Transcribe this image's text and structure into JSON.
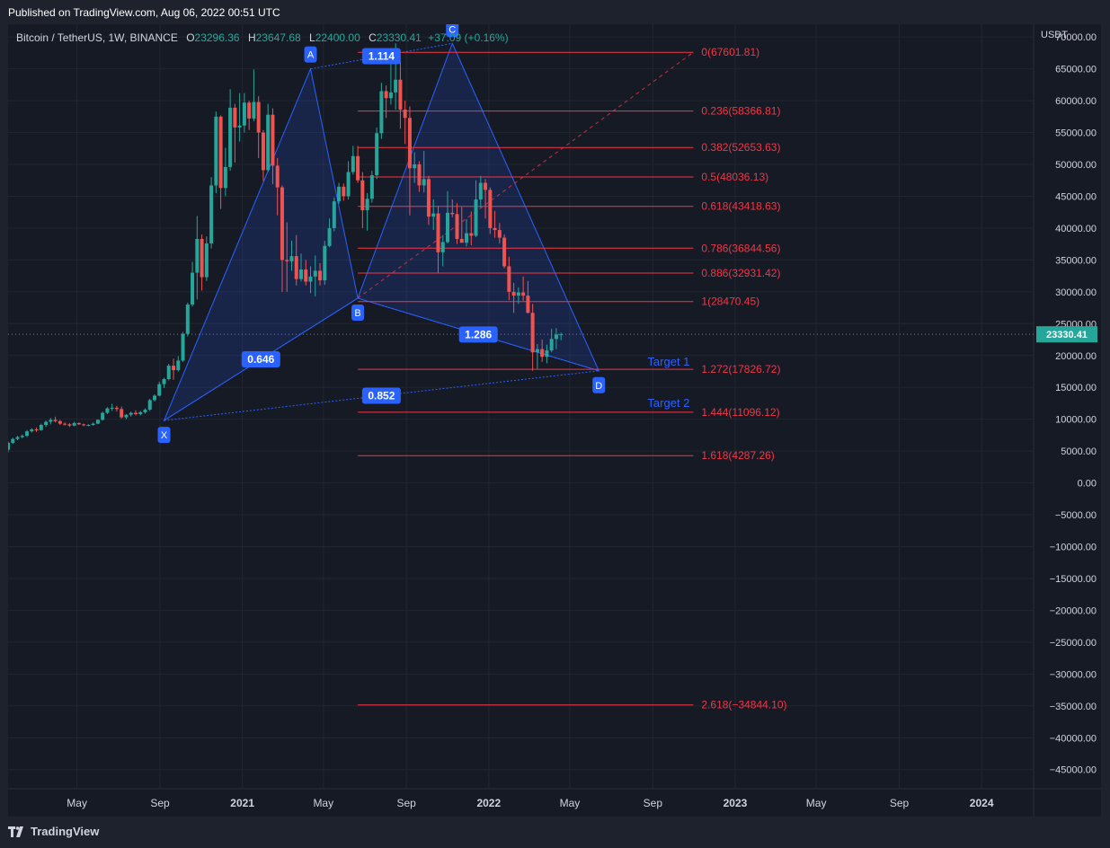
{
  "published": "Published on TradingView.com, Aug 06, 2022 00:51 UTC",
  "symbol_line": {
    "title": "Bitcoin / TetherUS, 1W, BINANCE",
    "open_label": "O",
    "open": "23296.36",
    "high_label": "H",
    "high": "23647.68",
    "low_label": "L",
    "low": "22400.00",
    "close_label": "C",
    "close": "23330.41",
    "change": "+37.09 (+0.16%)"
  },
  "currency": "USDT",
  "footer_brand": "TradingView",
  "colors": {
    "background": "#161a25",
    "up": "#26a69a",
    "down": "#ef5350",
    "fib": "#f23645",
    "pattern": "#2962ff",
    "label_bg": "#2962ff"
  },
  "chart_data": {
    "type": "candlestick",
    "ylim": [
      -48000,
      72000
    ],
    "y_ticks": [
      "70000.00",
      "65000.00",
      "60000.00",
      "55000.00",
      "50000.00",
      "45000.00",
      "40000.00",
      "35000.00",
      "30000.00",
      "25000.00",
      "20000.00",
      "15000.00",
      "10000.00",
      "5000.00",
      "0.00",
      "−5000.00",
      "−10000.00",
      "−15000.00",
      "−20000.00",
      "−25000.00",
      "−30000.00",
      "−35000.00",
      "−40000.00",
      "−45000.00"
    ],
    "x_ticks": [
      "May",
      "Sep",
      "2021",
      "May",
      "Sep",
      "2022",
      "May",
      "Sep",
      "2023",
      "May",
      "Sep",
      "2024"
    ],
    "last_price": "23330.41",
    "pattern_points": [
      {
        "label": "X",
        "x": "2020-09-07",
        "y": 9800
      },
      {
        "label": "A",
        "x": "2021-04-12",
        "y": 65000
      },
      {
        "label": "B",
        "x": "2021-06-21",
        "y": 29000
      },
      {
        "label": "C",
        "x": "2021-11-08",
        "y": 69000
      },
      {
        "label": "D",
        "x": "2022-06-13",
        "y": 17600
      }
    ],
    "ratios": [
      {
        "text": "0.646",
        "between": "X-B"
      },
      {
        "text": "1.114",
        "between": "A-C"
      },
      {
        "text": "1.286",
        "between": "B-D"
      },
      {
        "text": "0.852",
        "between": "X-D"
      }
    ],
    "fib_levels": [
      {
        "ratio": "0",
        "price": 67601.81,
        "label": "0(67601.81)"
      },
      {
        "ratio": "0.236",
        "price": 58366.81,
        "label": "0.236(58366.81)"
      },
      {
        "ratio": "0.382",
        "price": 52653.63,
        "label": "0.382(52653.63)"
      },
      {
        "ratio": "0.5",
        "price": 48036.13,
        "label": "0.5(48036.13)"
      },
      {
        "ratio": "0.618",
        "price": 43418.63,
        "label": "0.618(43418.63)"
      },
      {
        "ratio": "0.786",
        "price": 36844.56,
        "label": "0.786(36844.56)"
      },
      {
        "ratio": "0.886",
        "price": 32931.42,
        "label": "0.886(32931.42)"
      },
      {
        "ratio": "1",
        "price": 28470.45,
        "label": "1(28470.45)"
      },
      {
        "ratio": "1.272",
        "price": 17826.72,
        "label": "1.272(17826.72)"
      },
      {
        "ratio": "1.444",
        "price": 11096.12,
        "label": "1.444(11096.12)"
      },
      {
        "ratio": "1.618",
        "price": 4287.26,
        "label": "1.618(4287.26)"
      },
      {
        "ratio": "2.618",
        "price": -34844.1,
        "label": "2.618(−34844.10)"
      }
    ],
    "targets": [
      {
        "text": "Target 1",
        "price": 17826.72
      },
      {
        "text": "Target 2",
        "price": 11096.12
      }
    ],
    "candles_ohlc": [
      [
        5200,
        6500,
        4800,
        6300
      ],
      [
        6300,
        7100,
        6100,
        6900
      ],
      [
        6900,
        7400,
        6700,
        7200
      ],
      [
        7200,
        7600,
        7000,
        7400
      ],
      [
        7400,
        8300,
        7200,
        8100
      ],
      [
        8100,
        8600,
        7900,
        8400
      ],
      [
        8400,
        8700,
        8000,
        8300
      ],
      [
        8300,
        9300,
        8200,
        9100
      ],
      [
        9100,
        9800,
        8800,
        9600
      ],
      [
        9600,
        10200,
        9200,
        9900
      ],
      [
        9900,
        10400,
        9500,
        9700
      ],
      [
        9700,
        9900,
        9100,
        9300
      ],
      [
        9300,
        9500,
        9000,
        9200
      ],
      [
        9200,
        9400,
        8800,
        9000
      ],
      [
        9000,
        9600,
        8900,
        9400
      ],
      [
        9400,
        9500,
        9100,
        9200
      ],
      [
        9200,
        9300,
        8900,
        9100
      ],
      [
        9100,
        9200,
        8900,
        9100
      ],
      [
        9100,
        9500,
        9000,
        9300
      ],
      [
        9300,
        10000,
        9200,
        9900
      ],
      [
        9900,
        11200,
        9800,
        11000
      ],
      [
        11000,
        11900,
        10800,
        11700
      ],
      [
        11700,
        12400,
        11300,
        11800
      ],
      [
        11800,
        12100,
        11200,
        11600
      ],
      [
        11600,
        12000,
        10100,
        10300
      ],
      [
        10300,
        10800,
        10000,
        10700
      ],
      [
        10700,
        11200,
        10400,
        11000
      ],
      [
        11000,
        11400,
        10600,
        10800
      ],
      [
        10800,
        11300,
        10600,
        11100
      ],
      [
        11100,
        11700,
        10900,
        11500
      ],
      [
        11500,
        13200,
        11300,
        13000
      ],
      [
        13000,
        13900,
        12800,
        13700
      ],
      [
        13700,
        15900,
        13600,
        15500
      ],
      [
        15500,
        16500,
        14900,
        16300
      ],
      [
        16300,
        18700,
        16100,
        18400
      ],
      [
        18400,
        19500,
        16200,
        17700
      ],
      [
        17700,
        19900,
        17500,
        19200
      ],
      [
        19200,
        23700,
        19000,
        23400
      ],
      [
        23400,
        28300,
        23000,
        28000
      ],
      [
        28000,
        34700,
        27700,
        33000
      ],
      [
        33000,
        41900,
        28800,
        38300
      ],
      [
        38300,
        39000,
        30200,
        32300
      ],
      [
        32300,
        38700,
        31700,
        37600
      ],
      [
        37600,
        48000,
        36800,
        46700
      ],
      [
        46700,
        58300,
        45500,
        57500
      ],
      [
        57500,
        57700,
        43000,
        46300
      ],
      [
        46300,
        52600,
        45000,
        49600
      ],
      [
        49600,
        61800,
        49000,
        58900
      ],
      [
        58900,
        59500,
        50300,
        55800
      ],
      [
        55800,
        61200,
        53600,
        56100
      ],
      [
        56100,
        61200,
        55000,
        59700
      ],
      [
        59700,
        60000,
        55400,
        57200
      ],
      [
        57200,
        64900,
        56800,
        59800
      ],
      [
        59800,
        60700,
        51000,
        55000
      ],
      [
        55000,
        55400,
        47400,
        49100
      ],
      [
        49100,
        59500,
        48800,
        57800
      ],
      [
        57800,
        58800,
        46900,
        49800
      ],
      [
        49800,
        51000,
        42000,
        46400
      ],
      [
        46400,
        46700,
        30000,
        35000
      ],
      [
        35000,
        40900,
        30000,
        34800
      ],
      [
        34800,
        38000,
        33300,
        35600
      ],
      [
        35600,
        38900,
        31000,
        32000
      ],
      [
        32000,
        36000,
        31600,
        33500
      ],
      [
        33500,
        35000,
        31000,
        31600
      ],
      [
        31600,
        34000,
        29800,
        32400
      ],
      [
        32400,
        35700,
        29300,
        33300
      ],
      [
        33300,
        34500,
        31000,
        31800
      ],
      [
        31800,
        38000,
        31100,
        37200
      ],
      [
        37200,
        41500,
        37000,
        40000
      ],
      [
        40000,
        44800,
        39500,
        44200
      ],
      [
        44200,
        47100,
        43800,
        46500
      ],
      [
        46500,
        47000,
        44300,
        45000
      ],
      [
        45000,
        50500,
        44500,
        48800
      ],
      [
        48800,
        52900,
        48400,
        51300
      ],
      [
        51300,
        52900,
        47100,
        47500
      ],
      [
        47500,
        48800,
        40000,
        42800
      ],
      [
        42800,
        45500,
        39600,
        44600
      ],
      [
        44600,
        49000,
        44000,
        48300
      ],
      [
        48300,
        55800,
        47700,
        54900
      ],
      [
        54900,
        62800,
        54000,
        61500
      ],
      [
        61500,
        62400,
        57300,
        60400
      ],
      [
        60400,
        67000,
        59400,
        61300
      ],
      [
        61300,
        69000,
        58600,
        63300
      ],
      [
        63300,
        66300,
        55600,
        58600
      ],
      [
        58600,
        60000,
        53200,
        57300
      ],
      [
        57300,
        59100,
        42000,
        49400
      ],
      [
        49400,
        51900,
        47100,
        50000
      ],
      [
        50000,
        50500,
        45700,
        46700
      ],
      [
        46700,
        52100,
        45600,
        47700
      ],
      [
        47700,
        48200,
        40500,
        41800
      ],
      [
        41800,
        44500,
        39700,
        42300
      ],
      [
        42300,
        43500,
        33000,
        36200
      ],
      [
        36200,
        38900,
        34000,
        37800
      ],
      [
        37800,
        45800,
        37600,
        42400
      ],
      [
        42400,
        44500,
        41700,
        42200
      ],
      [
        42200,
        43900,
        37500,
        38300
      ],
      [
        38300,
        43300,
        38000,
        37700
      ],
      [
        37700,
        41400,
        37100,
        39200
      ],
      [
        39200,
        42600,
        37300,
        38800
      ],
      [
        38800,
        47500,
        38600,
        44500
      ],
      [
        44500,
        48200,
        43200,
        47100
      ],
      [
        47100,
        47700,
        41500,
        46000
      ],
      [
        46000,
        46400,
        39100,
        40000
      ],
      [
        40000,
        42700,
        38500,
        39700
      ],
      [
        39700,
        40800,
        37600,
        38500
      ],
      [
        38500,
        39000,
        33700,
        34000
      ],
      [
        34000,
        35500,
        28700,
        30000
      ],
      [
        30000,
        31400,
        26700,
        29400
      ],
      [
        29400,
        30700,
        28100,
        29900
      ],
      [
        29900,
        32400,
        28600,
        29400
      ],
      [
        29400,
        31700,
        26600,
        26700
      ],
      [
        26700,
        28100,
        17600,
        20500
      ],
      [
        20500,
        21800,
        17900,
        21000
      ],
      [
        21000,
        22500,
        19000,
        19800
      ],
      [
        19800,
        21700,
        18800,
        20800
      ],
      [
        20800,
        24200,
        20500,
        22600
      ],
      [
        22600,
        24300,
        21000,
        23300
      ],
      [
        23300,
        23600,
        22400,
        23330
      ]
    ]
  }
}
